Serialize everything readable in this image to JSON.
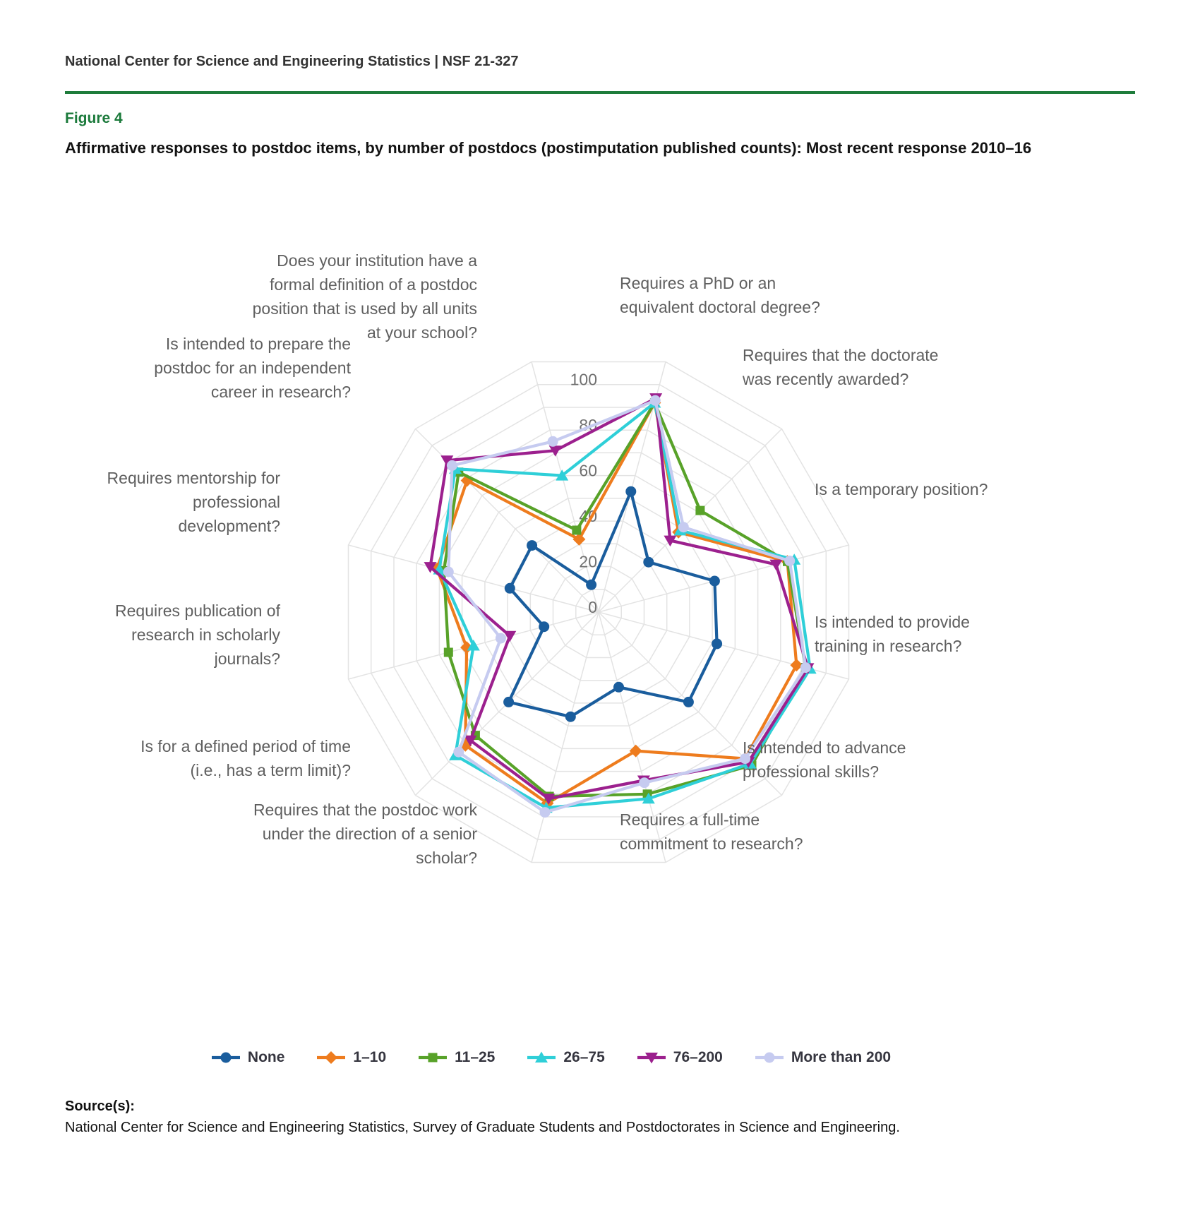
{
  "header": {
    "text": "National Center for Science and Engineering Statistics  |  NSF 21-327"
  },
  "figure": {
    "label": "Figure 4",
    "title": "Affirmative responses to postdoc items, by number of postdocs (postimputation published counts): Most recent response 2010–16"
  },
  "source": {
    "label": "Source(s):",
    "text": "National Center for Science and Engineering Statistics, Survey of Graduate Students and Postdoctorates in Science and Engineering."
  },
  "colors": {
    "rule_green": "#1e7c3b",
    "figure_label_green": "#1b7a3b",
    "grid": "#e3e3e3",
    "tick_text": "#6f6f6f",
    "axis_label_text": "#5f5f5f"
  },
  "chart_data": {
    "type": "radar",
    "title": "Affirmative responses to postdoc items, by number of postdocs",
    "axis": {
      "min": 0,
      "max": 110,
      "ring_step": 10,
      "tick_labels": [
        0,
        20,
        40,
        60,
        80,
        100
      ]
    },
    "legend_position": "bottom",
    "grid": "on",
    "categories": [
      {
        "slug": "formal-definition",
        "label": "Does your institution have a formal definition of a postdoc position that is used by all units at your school?"
      },
      {
        "slug": "phd-required",
        "label": "Requires a PhD or an equivalent doctoral degree?"
      },
      {
        "slug": "recently-awarded",
        "label": "Requires that the doctorate was recently awarded?"
      },
      {
        "slug": "temporary-position",
        "label": "Is a temporary position?"
      },
      {
        "slug": "training-in-research",
        "label": "Is intended to provide training in research?"
      },
      {
        "slug": "advance-professional-skills",
        "label": "Is intended to advance professional skills?"
      },
      {
        "slug": "full-time-commitment",
        "label": "Requires a full-time commitment to research?"
      },
      {
        "slug": "senior-scholar-direction",
        "label": "Requires that the postdoc work under the direction of a senior scholar?"
      },
      {
        "slug": "defined-period",
        "label": "Is for a defined period of time (i.e., has a term limit)?"
      },
      {
        "slug": "publication-required",
        "label": "Requires publication of research in scholarly journals?"
      },
      {
        "slug": "mentorship-required",
        "label": "Requires mentorship for professional development?"
      },
      {
        "slug": "prepare-independent-career",
        "label": "Is intended to prepare the postdoc for an independent career in research?"
      }
    ],
    "series": [
      {
        "name": "None",
        "slug": "none",
        "color": "#1a5d9d",
        "marker": "circle",
        "values": [
          12,
          53,
          30,
          51,
          52,
          54,
          33,
          46,
          54,
          24,
          39,
          40
        ]
      },
      {
        "name": "1–10",
        "slug": "1-10",
        "color": "#ee7c1e",
        "marker": "diamond",
        "values": [
          32,
          92,
          48,
          83,
          87,
          88,
          61,
          84,
          80,
          58,
          71,
          79
        ]
      },
      {
        "name": "11–25",
        "slug": "11-25",
        "color": "#58a229",
        "marker": "square",
        "values": [
          36,
          92,
          61,
          83,
          91,
          92,
          80,
          81,
          74,
          66,
          68,
          84
        ]
      },
      {
        "name": "26–75",
        "slug": "26-75",
        "color": "#2fcfd8",
        "marker": "triangle",
        "values": [
          60,
          92,
          49,
          86,
          93,
          91,
          82,
          86,
          86,
          55,
          70,
          86
        ]
      },
      {
        "name": "76–200",
        "slug": "76-200",
        "color": "#9c208e",
        "marker": "triangle-down",
        "values": [
          71,
          94,
          43,
          78,
          92,
          90,
          74,
          82,
          77,
          39,
          74,
          91
        ]
      },
      {
        "name": "More than 200",
        "slug": "more-than-200",
        "color": "#c6cbf0",
        "marker": "circle",
        "values": [
          75,
          93,
          51,
          84,
          91,
          88,
          75,
          88,
          84,
          43,
          66,
          88
        ]
      }
    ]
  }
}
